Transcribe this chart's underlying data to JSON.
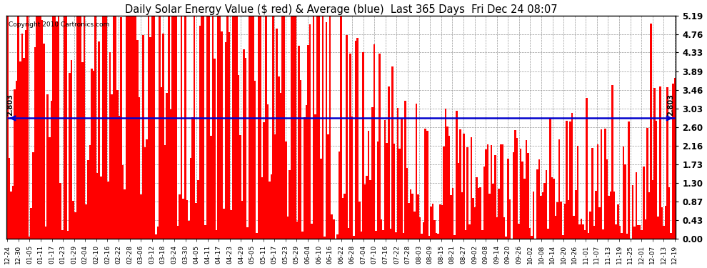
{
  "title": "Daily Solar Energy Value ($ red) & Average (blue)  Last 365 Days  Fri Dec 24 08:07",
  "title_fontsize": 10.5,
  "bar_color": "#ff0000",
  "avg_line_color": "#0000cc",
  "avg_value": 2.803,
  "avg_label": "2.803",
  "ylim": [
    0.0,
    5.19
  ],
  "yticks": [
    0.0,
    0.43,
    0.87,
    1.3,
    1.73,
    2.16,
    2.6,
    3.03,
    3.46,
    3.89,
    4.33,
    4.76,
    5.19
  ],
  "background_color": "#ffffff",
  "grid_color": "#999999",
  "copyright_text": "Copyright 2010 Cartronics.com",
  "x_tick_labels": [
    "12-24",
    "12-30",
    "01-05",
    "01-11",
    "01-17",
    "01-23",
    "01-29",
    "02-04",
    "02-10",
    "02-16",
    "02-22",
    "02-28",
    "03-06",
    "03-12",
    "03-18",
    "03-24",
    "03-30",
    "04-05",
    "04-11",
    "04-17",
    "04-23",
    "04-29",
    "05-05",
    "05-11",
    "05-17",
    "05-23",
    "05-29",
    "06-04",
    "06-10",
    "06-16",
    "06-22",
    "06-28",
    "07-04",
    "07-10",
    "07-16",
    "07-22",
    "07-28",
    "08-03",
    "08-09",
    "08-15",
    "08-21",
    "08-27",
    "09-02",
    "09-08",
    "09-14",
    "09-20",
    "09-26",
    "10-02",
    "10-08",
    "10-14",
    "10-20",
    "10-26",
    "11-01",
    "11-07",
    "11-13",
    "11-19",
    "11-25",
    "12-01",
    "12-07",
    "12-13",
    "12-19"
  ],
  "num_bars": 365,
  "seed": 12345
}
